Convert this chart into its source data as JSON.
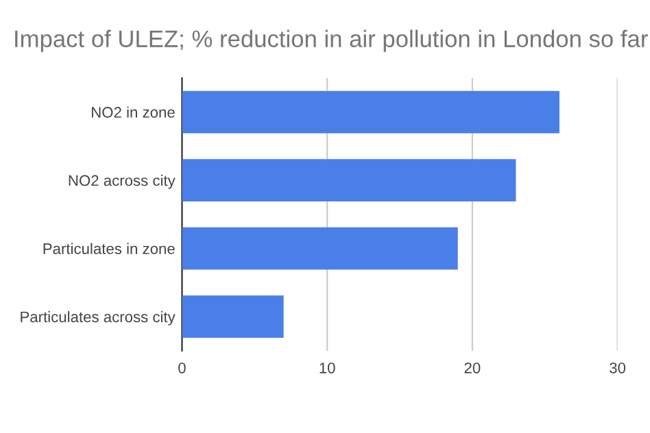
{
  "chart_data": {
    "type": "bar",
    "orientation": "horizontal",
    "title": "Impact of ULEZ; % reduction in air pollution in London so far",
    "categories": [
      "NO2 in zone",
      "NO2 across city",
      "Particulates in zone",
      "Particulates across city"
    ],
    "values": [
      26,
      23,
      19,
      7
    ],
    "color": "#4a7fe8",
    "xlim": [
      0,
      30
    ],
    "xticks": [
      0,
      10,
      20,
      30
    ],
    "grid": "x"
  }
}
